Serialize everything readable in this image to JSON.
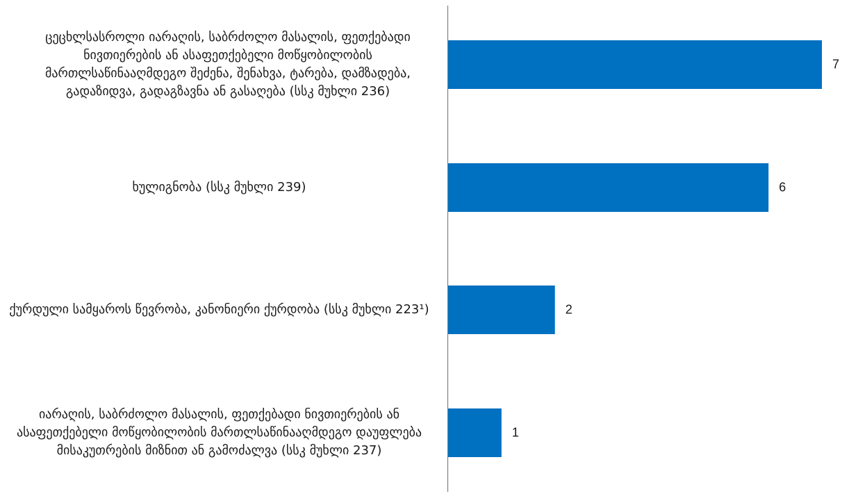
{
  "chart_data": {
    "type": "bar",
    "orientation": "horizontal",
    "categories": [
      "ცეცხლსასროლი იარაღის, საბრძოლო მასალის, ფეთქებადი ნივთიერების ან ასაფეთქებელი მოწყობილობის მართლსაწინააღმდეგო შეძენა, შენახვა, ტარება, დამზადება, გადაზიდვა, გადაგზავნა ან გასაღება (სსკ მუხლი 236)",
      "ხულიგნობა (სსკ მუხლი 239)",
      "ქურდული სამყაროს წევრობა, კანონიერი ქურდობა (სსკ მუხლი 223¹)",
      "იარაღის, საბრძოლო მასალის, ფეთქებადი ნივთიერების ან ასაფეთქებელი მოწყობილობის მართლსაწინააღმდეგო დაუფლება მისაკუთრების მიზნით ან გამოძალვა (სსკ მუხლი 237)"
    ],
    "values": [
      7,
      6,
      2,
      1
    ],
    "value_labels": [
      "7",
      "6",
      "2",
      "1"
    ],
    "xlim": [
      0,
      7
    ],
    "bar_color": "#0070C0",
    "axis_color": "#808080",
    "grid": false,
    "legend": "none"
  }
}
